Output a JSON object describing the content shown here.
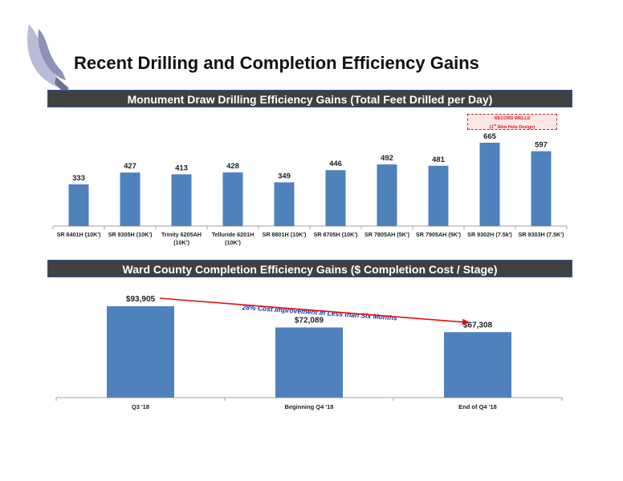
{
  "page_title": "Recent Drilling and Completion Efficiency Gains",
  "colors": {
    "bar": "#4f81bd",
    "banner": "#404040",
    "record": "#d02020",
    "annotation": "#1a2fa8",
    "arrow": "#e01010"
  },
  "record_box": {
    "line1": "RECORD WELLS",
    "line2_pre": "(1",
    "line2_sup": "st",
    "line2_post": " Slim Hole Design)"
  },
  "chart_data": [
    {
      "type": "bar",
      "title": "Monument Draw Drilling Efficiency Gains (Total Feet Drilled per Day)",
      "categories": [
        [
          "SR 6401H (10K')"
        ],
        [
          "SR 9305H (10K')"
        ],
        [
          "Trinity 6205AH",
          "(10K')"
        ],
        [
          "Telluride 6201H",
          "(10K')"
        ],
        [
          "SR 8801H (10K')"
        ],
        [
          "SR 8705H (10K')"
        ],
        [
          "SR 7805AH (5K')"
        ],
        [
          "SR 7905AH (5K')"
        ],
        [
          "SR 9302H (7.5k')"
        ],
        [
          "SR 9303H (7.5K')"
        ]
      ],
      "values": [
        333,
        427,
        413,
        428,
        349,
        446,
        492,
        481,
        665,
        597
      ],
      "value_labels": [
        "333",
        "427",
        "413",
        "428",
        "349",
        "446",
        "492",
        "481",
        "665",
        "597"
      ],
      "ylim": [
        0,
        700
      ],
      "grid": false,
      "legend": "none"
    },
    {
      "type": "bar",
      "title": "Ward County Completion Efficiency Gains ($ Completion Cost / Stage)",
      "categories": [
        [
          "Q3 '18"
        ],
        [
          "Beginning Q4 '18"
        ],
        [
          "End of Q4 '18"
        ]
      ],
      "values": [
        93905,
        72089,
        67308
      ],
      "value_labels": [
        "$93,905",
        "$72,089",
        "$67,308"
      ],
      "ylim": [
        0,
        95000
      ],
      "annotation": "28% Cost Improvement in Less than Six Months",
      "grid": false,
      "legend": "none"
    }
  ]
}
